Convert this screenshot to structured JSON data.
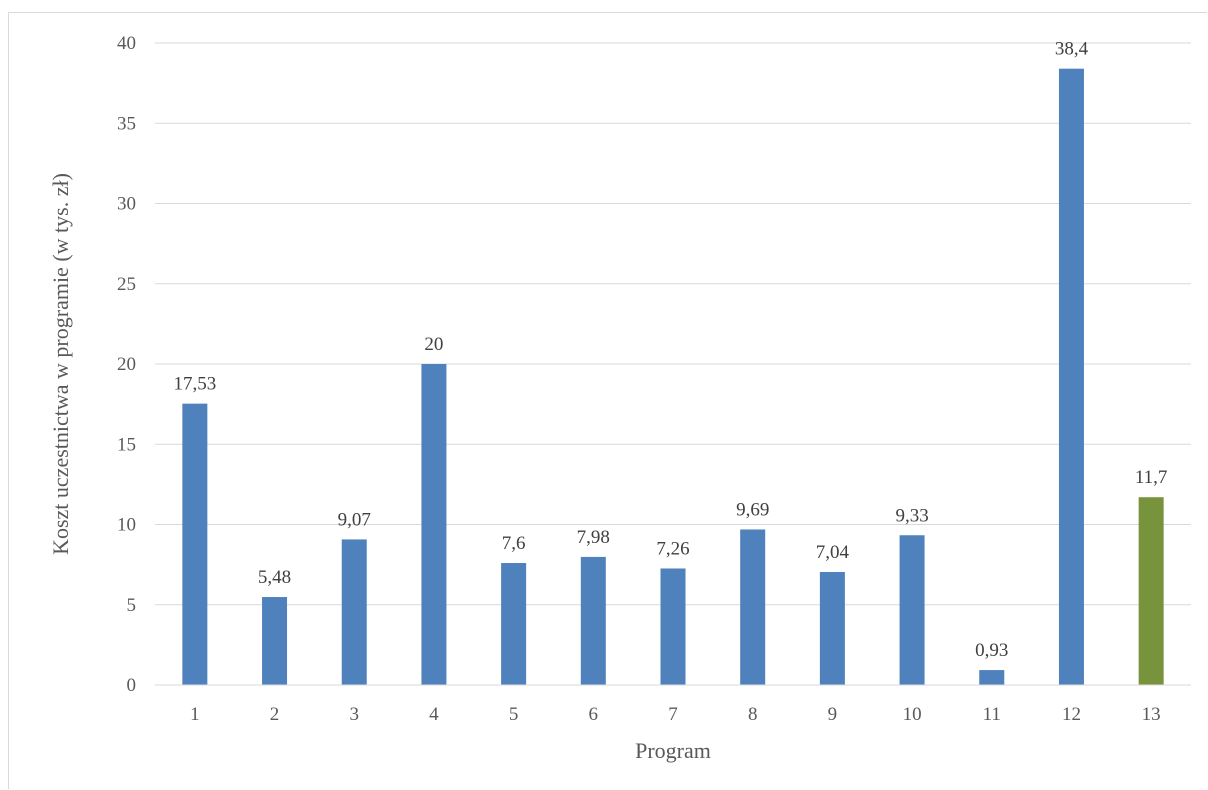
{
  "chart_data": {
    "type": "bar",
    "title": "",
    "xlabel": "Program",
    "ylabel": "Koszt uczestnictwa w programie (w tys. zł)",
    "ylim": [
      0,
      40
    ],
    "yticks": [
      0,
      5,
      10,
      15,
      20,
      25,
      30,
      35,
      40
    ],
    "ytick_labels": [
      "0",
      "5",
      "10",
      "15",
      "20",
      "25",
      "30",
      "35",
      "40"
    ],
    "categories": [
      "1",
      "2",
      "3",
      "4",
      "5",
      "6",
      "7",
      "8",
      "9",
      "10",
      "11",
      "12",
      "13"
    ],
    "values": [
      17.53,
      5.48,
      9.07,
      20,
      7.6,
      7.98,
      7.26,
      9.69,
      7.04,
      9.33,
      0.93,
      38.4,
      11.7
    ],
    "data_labels": [
      "17,53",
      "5,48",
      "9,07",
      "20",
      "7,6",
      "7,98",
      "7,26",
      "9,69",
      "7,04",
      "9,33",
      "0,93",
      "38,4",
      "11,7"
    ],
    "colors": [
      "#4f81bd",
      "#4f81bd",
      "#4f81bd",
      "#4f81bd",
      "#4f81bd",
      "#4f81bd",
      "#4f81bd",
      "#4f81bd",
      "#4f81bd",
      "#4f81bd",
      "#4f81bd",
      "#4f81bd",
      "#77933c"
    ],
    "grid": true,
    "legend": "none"
  }
}
